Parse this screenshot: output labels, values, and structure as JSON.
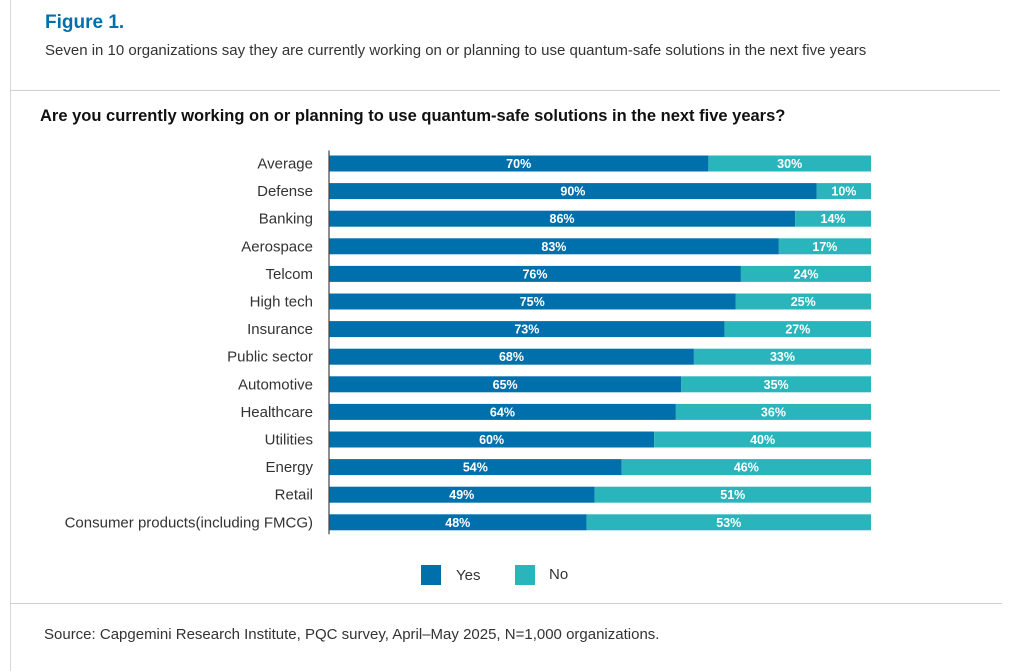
{
  "figure_label": "Figure 1.",
  "subtitle": "Seven in 10 organizations say they are currently working on or planning to use quantum-safe solutions in the next five years",
  "source": "Source: Capgemini Research Institute, PQC survey, April–May 2025, N=1,000 organizations.",
  "chart_data": {
    "type": "bar",
    "orientation": "horizontal",
    "stacked": true,
    "title": "Are you currently working on or planning to use quantum-safe solutions in the next five years?",
    "categories": [
      "Average",
      "Defense",
      "Banking",
      "Aerospace",
      "Telcom",
      "High tech",
      "Insurance",
      "Public sector",
      "Automotive",
      "Healthcare",
      "Utilities",
      "Energy",
      "Retail",
      "Consumer products(including FMCG)"
    ],
    "series": [
      {
        "name": "Yes",
        "color": "#0070ad",
        "values": [
          70,
          90,
          86,
          83,
          76,
          75,
          73,
          68,
          65,
          64,
          60,
          54,
          49,
          48
        ],
        "labels": [
          "70%",
          "90%",
          "86%",
          "83%",
          "76%",
          "75%",
          "73%",
          "68%",
          "65%",
          "64%",
          "60%",
          "54%",
          "49%",
          "48%"
        ]
      },
      {
        "name": "No",
        "color": "#2ab5bd",
        "values": [
          30,
          10,
          14,
          17,
          24,
          25,
          27,
          33,
          35,
          36,
          40,
          46,
          51,
          53
        ],
        "labels": [
          "30%",
          "10%",
          "14%",
          "17%",
          "24%",
          "25%",
          "27%",
          "33%",
          "35%",
          "36%",
          "40%",
          "46%",
          "51%",
          "53%"
        ]
      }
    ],
    "legend_position": "bottom",
    "grid": false,
    "xlim": [
      0,
      100
    ]
  }
}
